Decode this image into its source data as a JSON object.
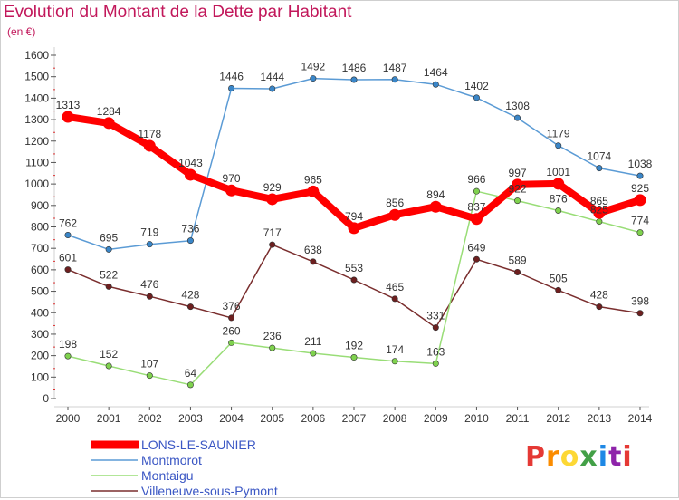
{
  "header": {
    "title": "Evolution du Montant de la Dette par Habitant",
    "subtitle": "(en €)"
  },
  "logo": {
    "text": "Proxiti",
    "colors": [
      "#e53935",
      "#fb8c00",
      "#fdd835",
      "#43a047",
      "#1e88e5",
      "#8e24aa",
      "#e53935"
    ]
  },
  "chart_data": {
    "type": "line",
    "title": "Evolution du Montant de la Dette par Habitant",
    "subtitle": "(en €)",
    "xlabel": "",
    "ylabel": "",
    "ylim": [
      0,
      1600
    ],
    "yticks": [
      0,
      100,
      200,
      300,
      400,
      500,
      600,
      700,
      800,
      900,
      1000,
      1100,
      1200,
      1300,
      1400,
      1500,
      1600
    ],
    "grid": false,
    "legend": "bottom-left",
    "x": [
      "2000",
      "2001",
      "2002",
      "2003",
      "2004",
      "2005",
      "2006",
      "2007",
      "2008",
      "2009",
      "2010",
      "2011",
      "2012",
      "2013",
      "2014"
    ],
    "series": [
      {
        "name": "LONS-LE-SAUNIER",
        "color": "#ff0000",
        "values": [
          1313,
          1284,
          1178,
          1043,
          970,
          929,
          965,
          794,
          856,
          894,
          837,
          997,
          1001,
          865,
          925
        ]
      },
      {
        "name": "Montmorot",
        "color": "#5b9bd5",
        "values": [
          762,
          695,
          719,
          736,
          1446,
          1444,
          1492,
          1486,
          1487,
          1464,
          1402,
          1308,
          1179,
          1074,
          1038
        ]
      },
      {
        "name": "Montaigu",
        "color": "#99dd77",
        "values": [
          198,
          152,
          107,
          64,
          260,
          236,
          211,
          192,
          174,
          163,
          966,
          922,
          876,
          825,
          774
        ]
      },
      {
        "name": "Villeneuve-sous-Pymont",
        "color": "#7a2e2e",
        "values": [
          601,
          522,
          476,
          428,
          376,
          717,
          638,
          553,
          465,
          331,
          649,
          589,
          505,
          428,
          398
        ]
      }
    ]
  }
}
